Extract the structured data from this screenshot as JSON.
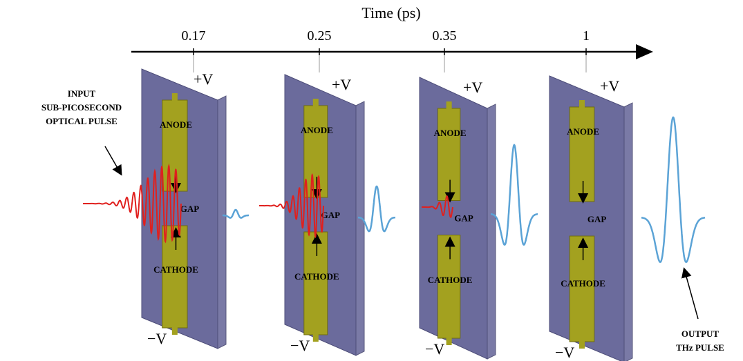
{
  "axis": {
    "title": "Time (ps)",
    "ticks": [
      "0.17",
      "0.25",
      "0.35",
      "1"
    ]
  },
  "panels": [
    {
      "top": "+V",
      "bottom": "−V",
      "anode": "ANODE",
      "gap": "GAP",
      "cathode": "CATHODE"
    },
    {
      "top": "+V",
      "bottom": "−V",
      "anode": "ANODE",
      "gap": "GAP",
      "cathode": "CATHODE"
    },
    {
      "top": "+V",
      "bottom": "−V",
      "anode": "ANODE",
      "gap": "GAP",
      "cathode": "CATHODE"
    },
    {
      "top": "+V",
      "bottom": "−V",
      "anode": "ANODE",
      "gap": "GAP",
      "cathode": "CATHODE"
    }
  ],
  "input_label": [
    "INPUT",
    "SUB-PICOSECOND",
    "OPTICAL PULSE"
  ],
  "output_label": [
    "OUTPUT",
    "THz PULSE"
  ]
}
